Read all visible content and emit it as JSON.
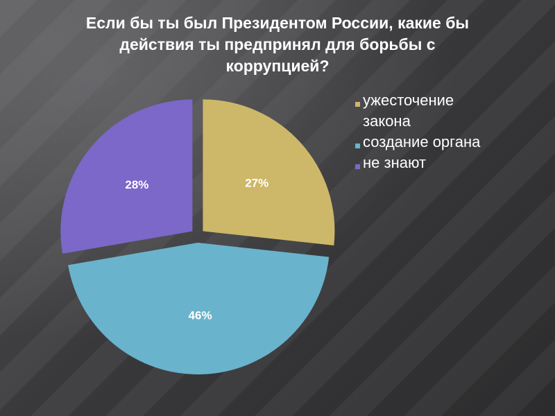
{
  "slide": {
    "title": "Если бы ты был Президентом России, какие бы\nдействия ты предпринял для борьбы с\nкоррупцией?"
  },
  "chart_data": {
    "type": "pie",
    "title": "Если бы ты был Президентом России, какие бы действия ты предпринял для борьбы с коррупцией?",
    "categories": [
      "ужесточение закона",
      "создание органа",
      "не знают"
    ],
    "values": [
      27,
      46,
      28
    ],
    "data_labels": [
      "27%",
      "46%",
      "28%"
    ],
    "colors": [
      "#cdb86a",
      "#6ab3cc",
      "#7b68c8"
    ],
    "legend_position": "right",
    "exploded": true
  }
}
